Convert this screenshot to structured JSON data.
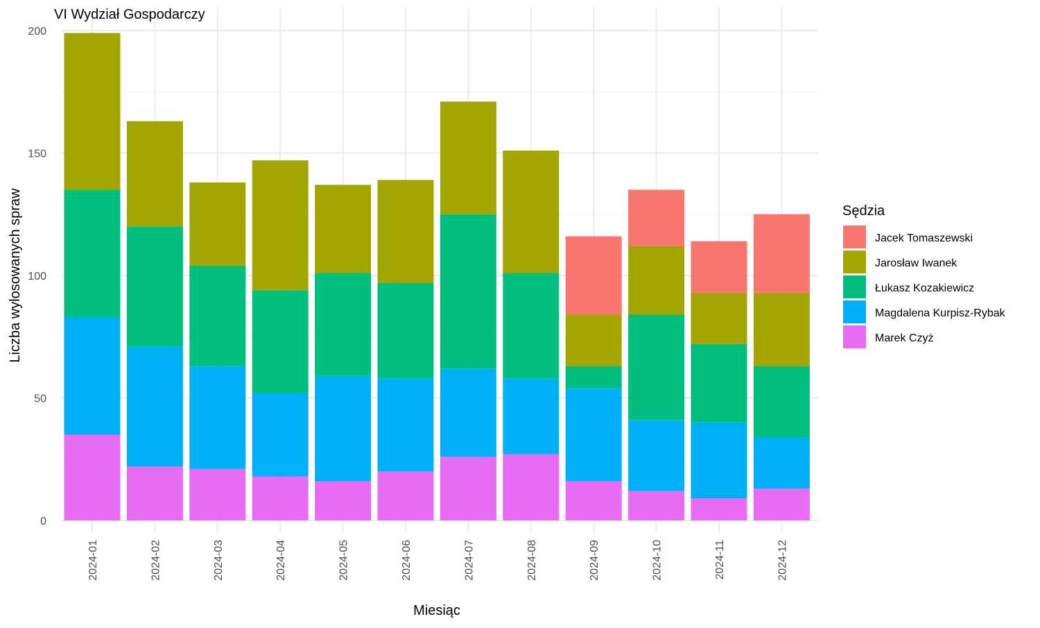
{
  "chart_data": {
    "type": "bar",
    "stacked": true,
    "title": "VI Wydział Gospodarczy",
    "xlabel": "Miesiąc",
    "ylabel": "Liczba wylosowanych spraw",
    "ylim": [
      0,
      200
    ],
    "yticks": [
      0,
      50,
      100,
      150,
      200
    ],
    "grid": true,
    "legend": {
      "title": "Sędzia",
      "position": "right"
    },
    "categories": [
      "2024-01",
      "2024-02",
      "2024-03",
      "2024-04",
      "2024-05",
      "2024-06",
      "2024-07",
      "2024-08",
      "2024-09",
      "2024-10",
      "2024-11",
      "2024-12"
    ],
    "series": [
      {
        "name": "Jacek Tomaszewski",
        "color": "#F8766D",
        "values": [
          0,
          0,
          0,
          0,
          0,
          0,
          0,
          0,
          32,
          23,
          21,
          32
        ]
      },
      {
        "name": "Jarosław Iwanek",
        "color": "#A3A500",
        "values": [
          64,
          43,
          34,
          53,
          36,
          42,
          46,
          50,
          21,
          28,
          21,
          30
        ]
      },
      {
        "name": "Łukasz Kozakiewicz",
        "color": "#00BF7D",
        "values": [
          52,
          49,
          41,
          42,
          42,
          39,
          63,
          43,
          9,
          43,
          32,
          29
        ]
      },
      {
        "name": "Magdalena Kurpisz-Rybak",
        "color": "#00B0F6",
        "values": [
          48,
          49,
          42,
          34,
          43,
          38,
          36,
          31,
          38,
          29,
          31,
          21
        ]
      },
      {
        "name": "Marek Czyż",
        "color": "#E76BF3",
        "values": [
          35,
          22,
          21,
          18,
          16,
          20,
          26,
          27,
          16,
          12,
          9,
          13
        ]
      }
    ]
  }
}
